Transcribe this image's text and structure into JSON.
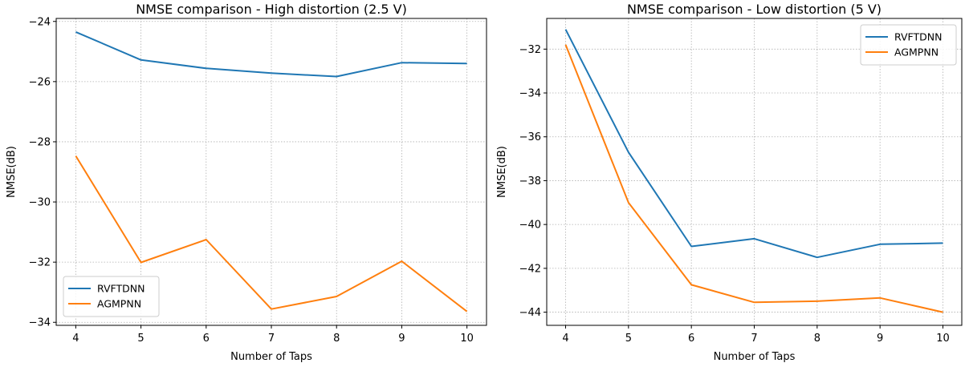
{
  "chart_data": [
    {
      "type": "line",
      "title": "NMSE comparison - High distortion (2.5 V)",
      "xlabel": "Number of Taps",
      "ylabel": "NMSE(dB)",
      "x": [
        4,
        5,
        6,
        7,
        8,
        9,
        10
      ],
      "xlim": [
        3.7,
        10.3
      ],
      "ylim": [
        -34.1,
        -23.9
      ],
      "xticks": [
        4,
        5,
        6,
        7,
        8,
        9,
        10
      ],
      "xtick_labels": [
        "4",
        "5",
        "6",
        "7",
        "8",
        "9",
        "10"
      ],
      "yticks": [
        -24,
        -26,
        -28,
        -30,
        -32,
        -34
      ],
      "ytick_labels": [
        "−24",
        "−26",
        "−28",
        "−30",
        "−32",
        "−34"
      ],
      "grid": true,
      "legend_placement": "lower-left",
      "series": [
        {
          "name": "RVFTDNN",
          "color": "#1f77b4",
          "values": [
            -24.35,
            -25.28,
            -25.56,
            -25.72,
            -25.83,
            -25.37,
            -25.4
          ]
        },
        {
          "name": "AGMPNN",
          "color": "#ff7f0e",
          "values": [
            -28.47,
            -32.01,
            -31.25,
            -33.56,
            -33.14,
            -31.97,
            -33.64
          ]
        }
      ]
    },
    {
      "type": "line",
      "title": "NMSE comparison - Low distortion (5 V)",
      "xlabel": "Number of Taps",
      "ylabel": "NMSE(dB)",
      "x": [
        4,
        5,
        6,
        7,
        8,
        9,
        10
      ],
      "xlim": [
        3.7,
        10.3
      ],
      "ylim": [
        -44.6,
        -30.6
      ],
      "xticks": [
        4,
        5,
        6,
        7,
        8,
        9,
        10
      ],
      "xtick_labels": [
        "4",
        "5",
        "6",
        "7",
        "8",
        "9",
        "10"
      ],
      "yticks": [
        -32,
        -34,
        -36,
        -38,
        -40,
        -42,
        -44
      ],
      "ytick_labels": [
        "−32",
        "−34",
        "−36",
        "−38",
        "−40",
        "−42",
        "−44"
      ],
      "grid": true,
      "legend_placement": "upper-right",
      "series": [
        {
          "name": "RVFTDNN",
          "color": "#1f77b4",
          "values": [
            -31.1,
            -36.7,
            -41.0,
            -40.65,
            -41.5,
            -40.9,
            -40.85
          ]
        },
        {
          "name": "AGMPNN",
          "color": "#ff7f0e",
          "values": [
            -31.8,
            -39.0,
            -42.75,
            -43.55,
            -43.5,
            -43.35,
            -44.0
          ]
        }
      ]
    }
  ]
}
